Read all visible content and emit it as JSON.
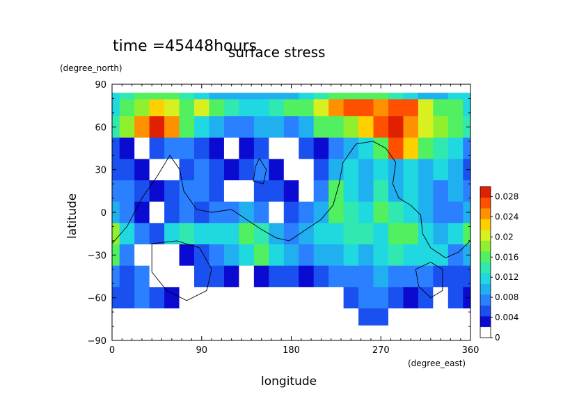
{
  "chart_data": {
    "type": "heatmap",
    "title": "surface stress",
    "subtitle": "time =45448hours",
    "xlabel": "longitude",
    "ylabel": "latitude",
    "x_unit": "(degree_east)",
    "y_unit": "(degree_north)",
    "xlim": [
      0,
      360
    ],
    "ylim": [
      -90,
      90
    ],
    "x_ticks": [
      "0",
      "90",
      "180",
      "270",
      "360"
    ],
    "y_ticks": [
      "90",
      "60",
      "30",
      "0",
      "−30",
      "−60",
      "−90"
    ],
    "x_tick_values": [
      0,
      90,
      180,
      270,
      360
    ],
    "y_tick_values": [
      90,
      60,
      30,
      0,
      -30,
      -60,
      -90
    ],
    "colorbar": {
      "min": 0,
      "max": 0.03,
      "ticks": [
        "0",
        "0.004",
        "0.008",
        "0.012",
        "0.016",
        "0.02",
        "0.024",
        "0.028"
      ],
      "tick_values": [
        0,
        0.004,
        0.008,
        0.012,
        0.016,
        0.02,
        0.024,
        0.028
      ],
      "colors": [
        "#ffffff",
        "#0a0ad0",
        "#1a50f0",
        "#2a80ff",
        "#20b0f0",
        "#20d8e0",
        "#30e8b0",
        "#50f060",
        "#90f030",
        "#d8f020",
        "#ffd000",
        "#ff9000",
        "#ff5000",
        "#e02000"
      ]
    },
    "grid_lon_step": 15,
    "grid_lat_step": 15,
    "grid_lons": [
      0,
      15,
      30,
      45,
      60,
      75,
      90,
      105,
      120,
      135,
      150,
      165,
      180,
      195,
      210,
      225,
      240,
      255,
      270,
      285,
      300,
      315,
      330,
      345,
      360
    ],
    "grid_lats": [
      84,
      75,
      60,
      45,
      30,
      15,
      0,
      -15,
      -30,
      -45,
      -60,
      -75,
      -84
    ],
    "values": [
      [
        0.01,
        0.012,
        0.014,
        0.016,
        0.014,
        0.012,
        0.01,
        0.008,
        0.008,
        0.008,
        0.008,
        0.008,
        0.008,
        0.01,
        0.012,
        0.014,
        0.016,
        0.016,
        0.014,
        0.012,
        0.01,
        0.008,
        0.008,
        0.01,
        0.01
      ],
      [
        0.01,
        0.014,
        0.018,
        0.022,
        0.02,
        0.016,
        0.02,
        0.016,
        0.012,
        0.01,
        0.01,
        0.012,
        0.014,
        0.016,
        0.02,
        0.024,
        0.026,
        0.026,
        0.024,
        0.026,
        0.026,
        0.02,
        0.016,
        0.014,
        0.01
      ],
      [
        0.012,
        0.018,
        0.024,
        0.028,
        0.024,
        0.014,
        0.01,
        0.008,
        0.006,
        0.006,
        0.008,
        0.008,
        0.006,
        0.008,
        0.014,
        0.016,
        0.018,
        0.022,
        0.026,
        0.028,
        0.024,
        0.02,
        0.018,
        0.016,
        0.012
      ],
      [
        0.004,
        0.002,
        0.0,
        0.004,
        0.006,
        0.006,
        0.004,
        0.002,
        0.0,
        0.002,
        0.004,
        0.0,
        0.0,
        0.004,
        0.002,
        0.006,
        0.008,
        0.01,
        0.016,
        0.026,
        0.022,
        0.016,
        0.012,
        0.01,
        0.006
      ],
      [
        0.004,
        0.004,
        0.002,
        0.0,
        0.0,
        0.004,
        0.006,
        0.004,
        0.002,
        0.004,
        0.006,
        0.002,
        0.0,
        0.0,
        0.004,
        0.008,
        0.01,
        0.008,
        0.01,
        0.008,
        0.01,
        0.008,
        0.01,
        0.008,
        0.004
      ],
      [
        0.006,
        0.006,
        0.004,
        0.002,
        0.004,
        0.006,
        0.006,
        0.004,
        0.0,
        0.0,
        0.004,
        0.004,
        0.002,
        0.0,
        0.006,
        0.014,
        0.01,
        0.008,
        0.012,
        0.008,
        0.01,
        0.008,
        0.006,
        0.008,
        0.006
      ],
      [
        0.008,
        0.006,
        0.002,
        0.0,
        0.004,
        0.006,
        0.004,
        0.006,
        0.006,
        0.008,
        0.006,
        0.0,
        0.004,
        0.006,
        0.008,
        0.016,
        0.012,
        0.01,
        0.014,
        0.012,
        0.01,
        0.008,
        0.006,
        0.006,
        0.008
      ],
      [
        0.018,
        0.01,
        0.006,
        0.004,
        0.01,
        0.012,
        0.01,
        0.01,
        0.01,
        0.014,
        0.012,
        0.008,
        0.006,
        0.008,
        0.01,
        0.01,
        0.012,
        0.012,
        0.01,
        0.016,
        0.014,
        0.01,
        0.008,
        0.01,
        0.016
      ],
      [
        0.014,
        0.006,
        0.0,
        0.0,
        0.0,
        0.002,
        0.004,
        0.006,
        0.008,
        0.01,
        0.014,
        0.01,
        0.008,
        0.006,
        0.008,
        0.008,
        0.01,
        0.008,
        0.01,
        0.012,
        0.01,
        0.01,
        0.01,
        0.006,
        0.008
      ],
      [
        0.006,
        0.004,
        0.006,
        0.0,
        0.0,
        0.0,
        0.004,
        0.004,
        0.002,
        0.0,
        0.002,
        0.004,
        0.004,
        0.002,
        0.004,
        0.006,
        0.006,
        0.006,
        0.008,
        0.006,
        0.006,
        0.006,
        0.004,
        0.004,
        0.004
      ],
      [
        0.004,
        0.004,
        0.006,
        0.004,
        0.002,
        0.0,
        0.0,
        0.0,
        0.0,
        0.0,
        0.0,
        0.0,
        0.0,
        0.0,
        0.0,
        0.0,
        0.004,
        0.006,
        0.006,
        0.004,
        0.002,
        0.004,
        0.0,
        0.004,
        0.002
      ],
      [
        0.0,
        0.0,
        0.0,
        0.0,
        0.0,
        0.0,
        0.0,
        0.0,
        0.0,
        0.0,
        0.0,
        0.0,
        0.0,
        0.0,
        0.0,
        0.0,
        0.0,
        0.004,
        0.004,
        0.0,
        0.0,
        0.0,
        0.0,
        0.0,
        0.0
      ],
      [
        0.0,
        0.0,
        0.0,
        0.0,
        0.0,
        0.0,
        0.0,
        0.0,
        0.0,
        0.0,
        0.0,
        0.0,
        0.0,
        0.0,
        0.0,
        0.0,
        0.0,
        0.0,
        0.0,
        0.0,
        0.0,
        0.0,
        0.0,
        0.0,
        0.0
      ]
    ],
    "coastlines": [
      [
        [
          0,
          -22
        ],
        [
          15,
          -10
        ],
        [
          30,
          10
        ],
        [
          45,
          25
        ],
        [
          58,
          40
        ],
        [
          68,
          30
        ],
        [
          72,
          15
        ],
        [
          85,
          2
        ],
        [
          100,
          0
        ],
        [
          120,
          2
        ],
        [
          135,
          -5
        ],
        [
          150,
          -12
        ],
        [
          165,
          -18
        ],
        [
          178,
          -20
        ],
        [
          195,
          -12
        ],
        [
          210,
          -5
        ],
        [
          222,
          5
        ],
        [
          228,
          20
        ],
        [
          232,
          35
        ],
        [
          245,
          48
        ],
        [
          262,
          50
        ],
        [
          275,
          45
        ],
        [
          285,
          35
        ],
        [
          282,
          20
        ],
        [
          288,
          10
        ],
        [
          300,
          5
        ],
        [
          310,
          -2
        ],
        [
          312,
          -15
        ],
        [
          320,
          -25
        ],
        [
          335,
          -32
        ],
        [
          348,
          -28
        ],
        [
          360,
          -20
        ]
      ],
      [
        [
          40,
          -22
        ],
        [
          65,
          -20
        ],
        [
          88,
          -25
        ],
        [
          100,
          -40
        ],
        [
          95,
          -55
        ],
        [
          75,
          -62
        ],
        [
          55,
          -55
        ],
        [
          40,
          -42
        ],
        [
          40,
          -22
        ]
      ],
      [
        [
          148,
          38
        ],
        [
          155,
          30
        ],
        [
          152,
          20
        ],
        [
          142,
          22
        ],
        [
          144,
          32
        ],
        [
          148,
          38
        ]
      ],
      [
        [
          305,
          -40
        ],
        [
          320,
          -35
        ],
        [
          332,
          -40
        ],
        [
          332,
          -55
        ],
        [
          320,
          -60
        ],
        [
          308,
          -52
        ],
        [
          305,
          -40
        ]
      ]
    ]
  }
}
